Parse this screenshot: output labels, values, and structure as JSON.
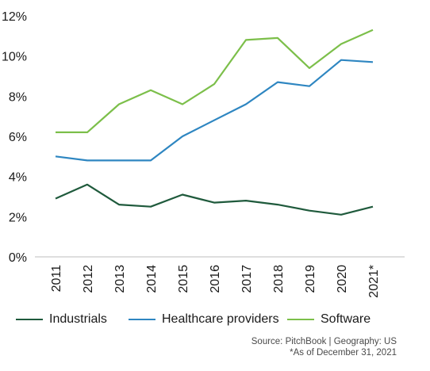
{
  "chart_data": {
    "type": "line",
    "title": "",
    "xlabel": "",
    "ylabel": "",
    "categories": [
      "2011",
      "2012",
      "2013",
      "2014",
      "2015",
      "2016",
      "2017",
      "2018",
      "2019",
      "2020",
      "2021*"
    ],
    "ylim": [
      0,
      12
    ],
    "yticks": [
      0,
      2,
      4,
      6,
      8,
      10,
      12
    ],
    "ytick_labels": [
      "0%",
      "2%",
      "4%",
      "6%",
      "8%",
      "10%",
      "12%"
    ],
    "grid": false,
    "legend_position": "bottom",
    "series": [
      {
        "name": "Industrials",
        "color": "#1f5a3c",
        "values": [
          2.9,
          3.6,
          2.6,
          2.5,
          3.1,
          2.7,
          2.8,
          2.6,
          2.3,
          2.1,
          2.5
        ]
      },
      {
        "name": "Healthcare providers",
        "color": "#2e86c1",
        "values": [
          5.0,
          4.8,
          4.8,
          4.8,
          6.0,
          6.8,
          7.6,
          8.7,
          8.5,
          9.8,
          9.7
        ]
      },
      {
        "name": "Software",
        "color": "#7cbf4a",
        "values": [
          6.2,
          6.2,
          7.6,
          8.3,
          7.6,
          8.6,
          10.8,
          10.9,
          9.4,
          10.6,
          11.3
        ]
      }
    ]
  },
  "footer": {
    "source": "Source: PitchBook | Geography: US",
    "note": "*As of December 31, 2021"
  }
}
